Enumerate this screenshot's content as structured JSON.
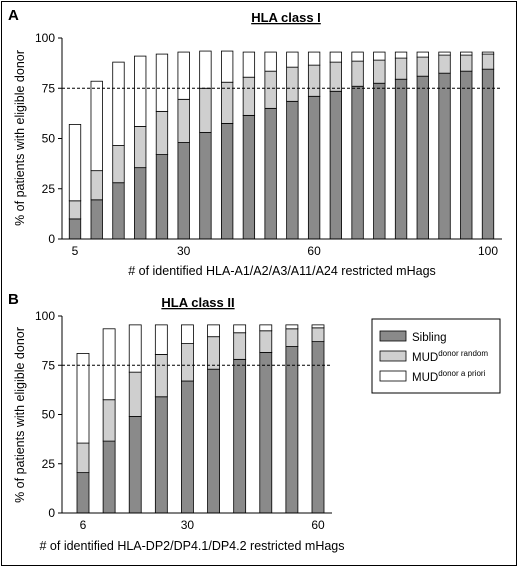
{
  "colors": {
    "sibling": "#8a8a8a",
    "mud_random": "#cfcfcf",
    "mud_apriori": "#ffffff",
    "stroke": "#000000"
  },
  "chart_data": [
    {
      "type": "bar",
      "stacked": true,
      "panel": "A",
      "title": "HLA class I",
      "xlabel": "# of identified HLA-A1/A2/A3/A11/A24 restricted mHags",
      "ylabel": "% of patients with eligible donor",
      "xtick_labels": [
        "5",
        "30",
        "60",
        "100"
      ],
      "ytick_labels": [
        "0",
        "25",
        "50",
        "75",
        "100"
      ],
      "ylim": [
        0,
        100
      ],
      "reference_line": 75,
      "x": [
        5,
        10,
        15,
        20,
        25,
        30,
        35,
        40,
        45,
        50,
        55,
        60,
        65,
        70,
        75,
        80,
        85,
        90,
        95,
        100
      ],
      "series": [
        {
          "name": "Sibling",
          "values": [
            10,
            19.5,
            28,
            35.5,
            42,
            48,
            53,
            57.5,
            61.5,
            65,
            68.5,
            71,
            73.5,
            76,
            77.5,
            79.5,
            81,
            82.5,
            83.5,
            84.5
          ]
        },
        {
          "name": "MUD donor random",
          "values": [
            9,
            14.5,
            18.5,
            20.5,
            21.5,
            21.5,
            22,
            20.5,
            19,
            18.5,
            17,
            15.5,
            14.5,
            12.5,
            11.5,
            10.5,
            9.5,
            9,
            8,
            7.5
          ]
        },
        {
          "name": "MUD donor a priori",
          "values": [
            38,
            44.5,
            41.5,
            35,
            28.5,
            23.5,
            18.5,
            15.5,
            12.5,
            9.5,
            7.5,
            6.5,
            5,
            4.5,
            4,
            3,
            2.5,
            1.5,
            1.5,
            1
          ]
        }
      ]
    },
    {
      "type": "bar",
      "stacked": true,
      "panel": "B",
      "title": "HLA class II",
      "xlabel": "# of identified HLA-DP2/DP4.1/DP4.2 restricted mHags",
      "ylabel": "% of patients with eligible donor",
      "xtick_labels": [
        "6",
        "30",
        "60"
      ],
      "ytick_labels": [
        "0",
        "25",
        "50",
        "75",
        "100"
      ],
      "ylim": [
        0,
        100
      ],
      "reference_line": 75,
      "x": [
        6,
        12,
        18,
        24,
        30,
        36,
        42,
        48,
        54,
        60
      ],
      "series": [
        {
          "name": "Sibling",
          "values": [
            20.5,
            36.5,
            49,
            59,
            67,
            73,
            78,
            81.5,
            84.5,
            87
          ]
        },
        {
          "name": "MUD donor random",
          "values": [
            15,
            21,
            22.5,
            21.5,
            19,
            16.5,
            13.5,
            11,
            9,
            7
          ]
        },
        {
          "name": "MUD donor a priori",
          "values": [
            45.5,
            36,
            24,
            15,
            9.5,
            6,
            4,
            3,
            2,
            1.5
          ]
        }
      ]
    }
  ],
  "legend": {
    "items": [
      {
        "text": "Sibling",
        "sup": ""
      },
      {
        "text": "MUD",
        "sup": "donor random"
      },
      {
        "text": "MUD",
        "sup": "donor a priori"
      }
    ]
  }
}
